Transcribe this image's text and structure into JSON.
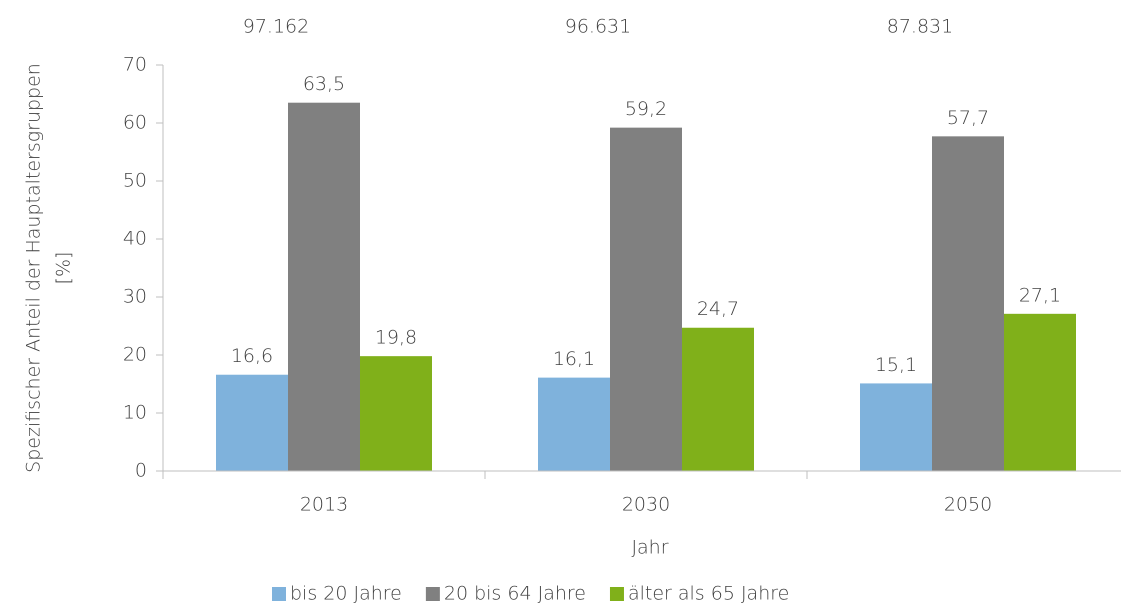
{
  "chart_data": {
    "type": "bar",
    "categories": [
      "2013",
      "2030",
      "2050"
    ],
    "annotations": [
      "97.162",
      "96.631",
      "87.831"
    ],
    "series": [
      {
        "name": "bis 20 Jahre",
        "color": "#7fb2dc",
        "values": [
          16.6,
          16.1,
          15.1
        ],
        "value_labels": [
          "16,6",
          "16,1",
          "15,1"
        ]
      },
      {
        "name": "20 bis 64 Jahre",
        "color": "#808080",
        "values": [
          63.5,
          59.2,
          57.7
        ],
        "value_labels": [
          "63,5",
          "59,2",
          "57,7"
        ]
      },
      {
        "name": "älter als 65 Jahre",
        "color": "#80b01a",
        "values": [
          19.8,
          24.7,
          27.1
        ],
        "value_labels": [
          "19,8",
          "24,7",
          "27,1"
        ]
      }
    ],
    "xlabel": "Jahr",
    "ylabel": [
      "Spezifischer Anteil der Hauptaltersgruppen",
      "[%]"
    ],
    "ylim": [
      0,
      70
    ],
    "yticks": [
      0,
      10,
      20,
      30,
      40,
      50,
      60,
      70
    ],
    "grid": false,
    "legend": "bottom"
  }
}
